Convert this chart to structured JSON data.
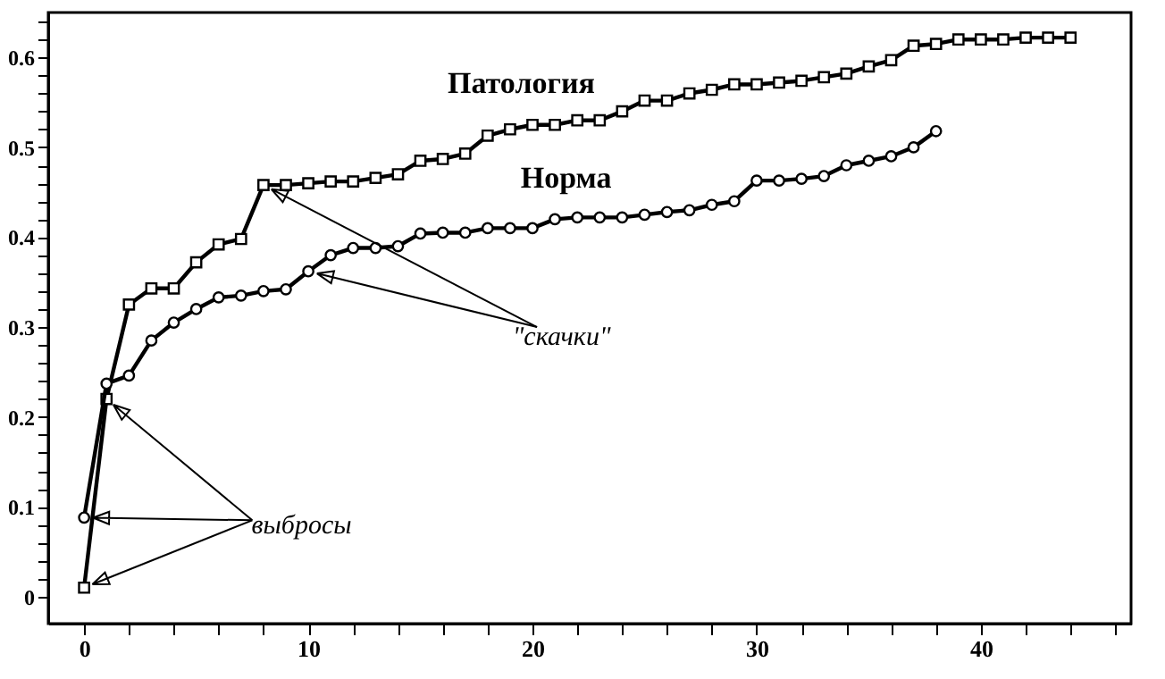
{
  "chart_data": {
    "type": "line",
    "xlim": [
      -1.6,
      46.7
    ],
    "ylim": [
      -0.03,
      0.65
    ],
    "xticks": [
      0,
      {
        "value": 2,
        "label": null
      },
      {
        "value": 4,
        "label": null
      },
      {
        "value": 6,
        "label": null
      },
      {
        "value": 8,
        "label": null
      },
      10,
      {
        "value": 12,
        "label": null
      },
      {
        "value": 14,
        "label": null
      },
      {
        "value": 16,
        "label": null
      },
      {
        "value": 18,
        "label": null
      },
      20,
      {
        "value": 22,
        "label": null
      },
      {
        "value": 24,
        "label": null
      },
      {
        "value": 26,
        "label": null
      },
      {
        "value": 28,
        "label": null
      },
      30,
      {
        "value": 32,
        "label": null
      },
      {
        "value": 34,
        "label": null
      },
      {
        "value": 36,
        "label": null
      },
      {
        "value": 38,
        "label": null
      },
      40,
      {
        "value": 42,
        "label": null
      },
      {
        "value": 44,
        "label": null
      },
      {
        "value": 46,
        "label": null
      }
    ],
    "yticks": [
      0,
      {
        "value": 0.02,
        "label": null
      },
      {
        "value": 0.04,
        "label": null
      },
      {
        "value": 0.06,
        "label": null
      },
      {
        "value": 0.08,
        "label": null
      },
      0.1,
      {
        "value": 0.12,
        "label": null
      },
      {
        "value": 0.14,
        "label": null
      },
      {
        "value": 0.16,
        "label": null
      },
      {
        "value": 0.18,
        "label": null
      },
      0.2,
      {
        "value": 0.22,
        "label": null
      },
      {
        "value": 0.24,
        "label": null
      },
      {
        "value": 0.26,
        "label": null
      },
      {
        "value": 0.28,
        "label": null
      },
      0.3,
      {
        "value": 0.32,
        "label": null
      },
      {
        "value": 0.34,
        "label": null
      },
      {
        "value": 0.36,
        "label": null
      },
      {
        "value": 0.38,
        "label": null
      },
      0.4,
      {
        "value": 0.42,
        "label": null
      },
      {
        "value": 0.44,
        "label": null
      },
      {
        "value": 0.46,
        "label": null
      },
      {
        "value": 0.48,
        "label": null
      },
      0.5,
      {
        "value": 0.52,
        "label": null
      },
      {
        "value": 0.54,
        "label": null
      },
      {
        "value": 0.56,
        "label": null
      },
      {
        "value": 0.58,
        "label": null
      },
      0.6,
      {
        "value": 0.62,
        "label": null
      },
      {
        "value": 0.64,
        "label": null
      }
    ],
    "grid": false,
    "legend": false,
    "line_style": "solid",
    "series": [
      {
        "name": "Патология",
        "color": "#000000",
        "marker": "square",
        "x": [
          0,
          1,
          2,
          3,
          4,
          5,
          6,
          7,
          8,
          9,
          10,
          11,
          12,
          13,
          14,
          15,
          16,
          17,
          18,
          19,
          20,
          21,
          22,
          23,
          24,
          25,
          26,
          27,
          28,
          29,
          30,
          31,
          32,
          33,
          34,
          35,
          36,
          37,
          38,
          39,
          40,
          41,
          42,
          43,
          44
        ],
        "values": [
          0.01,
          0.22,
          0.325,
          0.343,
          0.343,
          0.372,
          0.392,
          0.398,
          0.458,
          0.458,
          0.46,
          0.462,
          0.462,
          0.466,
          0.47,
          0.485,
          0.487,
          0.493,
          0.513,
          0.52,
          0.525,
          0.525,
          0.53,
          0.53,
          0.54,
          0.552,
          0.552,
          0.56,
          0.564,
          0.57,
          0.57,
          0.572,
          0.574,
          0.578,
          0.582,
          0.59,
          0.597,
          0.613,
          0.615,
          0.62,
          0.62,
          0.62,
          0.622,
          0.622,
          0.622
        ]
      },
      {
        "name": "Норма",
        "color": "#000000",
        "marker": "circle",
        "x": [
          0,
          1,
          2,
          3,
          4,
          5,
          6,
          7,
          8,
          9,
          10,
          11,
          12,
          13,
          14,
          15,
          16,
          17,
          18,
          19,
          20,
          21,
          22,
          23,
          24,
          25,
          26,
          27,
          28,
          29,
          30,
          31,
          32,
          33,
          34,
          35,
          36,
          37,
          38
        ],
        "values": [
          0.088,
          0.237,
          0.246,
          0.285,
          0.305,
          0.32,
          0.333,
          0.335,
          0.34,
          0.342,
          0.362,
          0.38,
          0.388,
          0.388,
          0.39,
          0.404,
          0.405,
          0.405,
          0.41,
          0.41,
          0.41,
          0.42,
          0.422,
          0.422,
          0.422,
          0.425,
          0.428,
          0.43,
          0.436,
          0.44,
          0.463,
          0.463,
          0.465,
          0.468,
          0.48,
          0.485,
          0.49,
          0.5,
          0.518
        ]
      }
    ],
    "annotations": [
      {
        "text": "\"скачки\"",
        "x": 8,
        "y": 0.458
      },
      {
        "text": "выбросы",
        "x": 0,
        "y": 0.088
      }
    ]
  }
}
